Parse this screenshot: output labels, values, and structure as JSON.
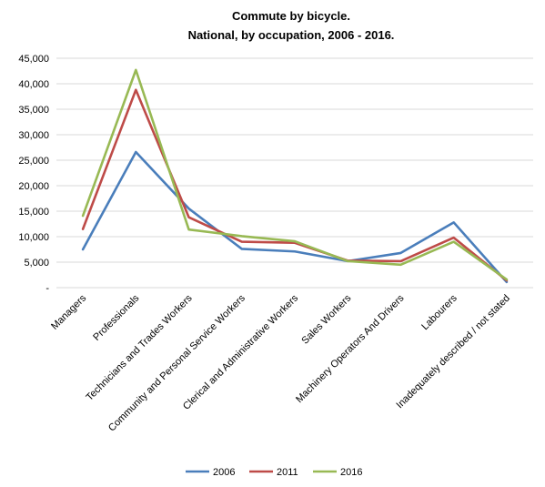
{
  "chart_data": {
    "type": "line",
    "title": "Commute by bicycle.",
    "subtitle": "National, by occupation, 2006 - 2016.",
    "xlabel": "",
    "ylabel": "",
    "categories": [
      "Managers",
      "Professionals",
      "Technicians and Trades Workers",
      "Community and Personal Service Workers",
      "Clerical and Administrative Workers",
      "Sales Workers",
      "Machinery Operators And Drivers",
      "Labourers",
      "Inadequately described / not stated"
    ],
    "ylim": [
      0,
      45000
    ],
    "yticks": [
      0,
      5000,
      10000,
      15000,
      20000,
      25000,
      30000,
      35000,
      40000,
      45000
    ],
    "ytick_labels": [
      "-",
      "5,000",
      "10,000",
      "15,000",
      "20,000",
      "25,000",
      "30,000",
      "35,000",
      "40,000",
      "45,000"
    ],
    "grid": true,
    "legend_position": "bottom",
    "series": [
      {
        "name": "2006",
        "color": "#4a7ebb",
        "values": [
          7500,
          26600,
          15500,
          7600,
          7100,
          5200,
          6800,
          12800,
          1100
        ]
      },
      {
        "name": "2011",
        "color": "#be4b48",
        "values": [
          11500,
          38800,
          13800,
          9000,
          8800,
          5300,
          5200,
          9800,
          1400
        ]
      },
      {
        "name": "2016",
        "color": "#98b954",
        "values": [
          14100,
          42700,
          11400,
          10100,
          9100,
          5200,
          4500,
          9000,
          1600
        ]
      }
    ]
  }
}
